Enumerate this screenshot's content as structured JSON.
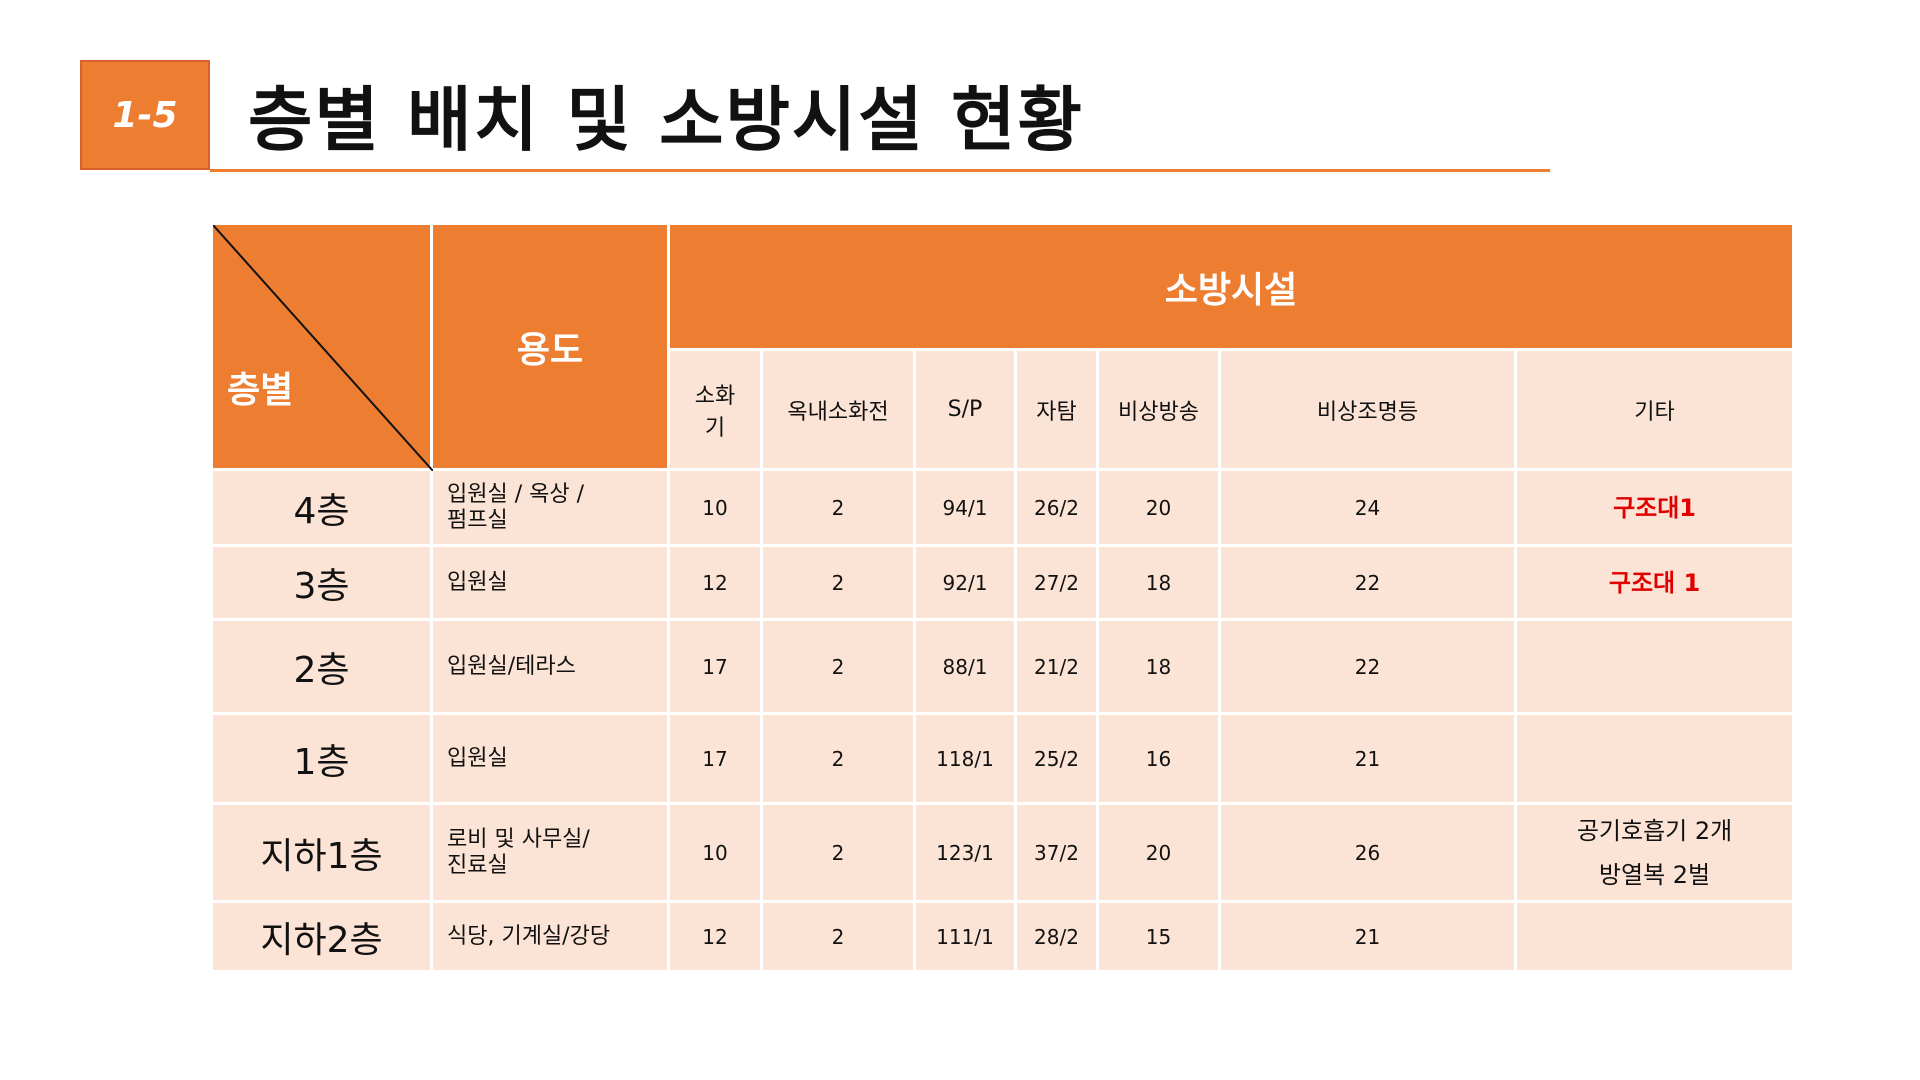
{
  "header": {
    "section_number": "1-5",
    "title": "층별 배치 및 소방시설 현황"
  },
  "table": {
    "corner_label": "층별",
    "use_header": "용도",
    "facilities_header": "소방시설",
    "columns": [
      "소화\n기",
      "옥내소화전",
      "S/P",
      "자탐",
      "비상방송",
      "비상조명등",
      "기타"
    ],
    "rows": [
      {
        "floor": "4층",
        "use": "입원실 / 옥상 /\n펌프실",
        "values": [
          "10",
          "2",
          "94/1",
          "26/2",
          "20",
          "24"
        ],
        "misc": "구조대1",
        "misc_red": true
      },
      {
        "floor": "3층",
        "use": "입원실",
        "values": [
          "12",
          "2",
          "92/1",
          "27/2",
          "18",
          "22"
        ],
        "misc": "구조대 1",
        "misc_red": true
      },
      {
        "floor": "2층",
        "use": "입원실/테라스",
        "values": [
          "17",
          "2",
          "88/1",
          "21/2",
          "18",
          "22"
        ],
        "misc": "",
        "misc_red": false
      },
      {
        "floor": "1층",
        "use": "입원실",
        "values": [
          "17",
          "2",
          "118/1",
          "25/2",
          "16",
          "21"
        ],
        "misc": "",
        "misc_red": false
      },
      {
        "floor": "지하1층",
        "use": "로비 및 사무실/\n진료실",
        "values": [
          "10",
          "2",
          "123/1",
          "37/2",
          "20",
          "26"
        ],
        "misc": "공기호흡기 2개\n방열복 2벌",
        "misc_red": false
      },
      {
        "floor": "지하2층",
        "use": "식당, 기계실/강당",
        "values": [
          "12",
          "2",
          "111/1",
          "28/2",
          "15",
          "21"
        ],
        "misc": "",
        "misc_red": false
      }
    ]
  },
  "colors": {
    "accent": "#ED7D31",
    "cell_bg": "#FBE4D5",
    "highlight_text": "#E00000"
  }
}
